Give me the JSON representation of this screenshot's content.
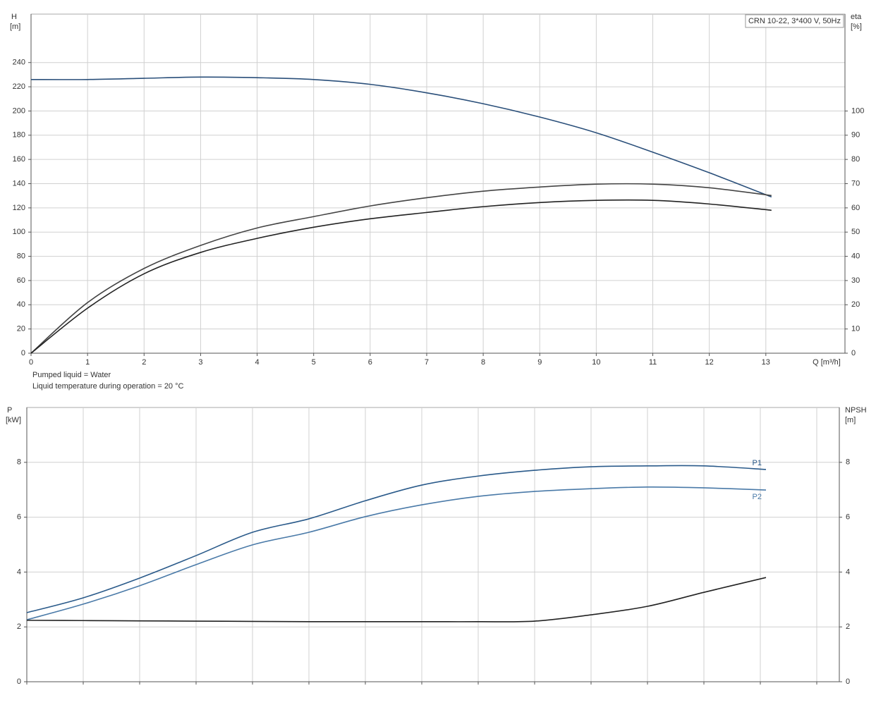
{
  "chart_data": [
    {
      "type": "line",
      "title": "CRN 10-22, 3*400 V, 50Hz",
      "y_label": "H",
      "y_unit": "[m]",
      "y2_label": "eta",
      "y2_unit": "[%]",
      "x_label": "Q [m³/h]",
      "notes": [
        "Pumped liquid = Water",
        "Liquid temperature during operation = 20 °C"
      ],
      "x": [
        0,
        1,
        2,
        3,
        4,
        5,
        6,
        7,
        8,
        9,
        10,
        11,
        12,
        13.1
      ],
      "series": [
        {
          "color": "#2a4f7a",
          "values": [
            226,
            226,
            227,
            228,
            227.5,
            226,
            222,
            215,
            206,
            195,
            182,
            166,
            149,
            129
          ]
        },
        {
          "color": "#444444",
          "axis": "y2",
          "values": [
            0,
            20.9,
            35,
            44.5,
            51.7,
            56.4,
            60.8,
            64.2,
            66.9,
            68.6,
            69.8,
            69.8,
            68.3,
            65.1
          ]
        },
        {
          "color": "#222222",
          "axis": "y2",
          "values": [
            0,
            18.6,
            32.8,
            41.6,
            47.4,
            52,
            55.5,
            58.1,
            60.5,
            62.2,
            63.1,
            63.1,
            61.6,
            59
          ]
        }
      ],
      "xlim": [
        0,
        14.4
      ],
      "xticks": [
        0,
        1,
        2,
        3,
        4,
        5,
        6,
        7,
        8,
        9,
        10,
        11,
        12,
        13
      ],
      "xtick_labels": true,
      "ylim": [
        0,
        280
      ],
      "yticks": [
        0,
        20,
        40,
        60,
        80,
        100,
        120,
        140,
        160,
        180,
        200,
        220,
        240
      ],
      "y2lim": [
        0,
        140
      ],
      "y2ticks": [
        0,
        10,
        20,
        30,
        40,
        50,
        60,
        70,
        80,
        90,
        100
      ],
      "grid": true
    },
    {
      "type": "line",
      "y_label": "P",
      "y_unit": "[kW]",
      "y2_label": "NPSH",
      "y2_unit": "[m]",
      "x": [
        0,
        1,
        2,
        3,
        4,
        5,
        6,
        7,
        8,
        9,
        10,
        11,
        12,
        13.1
      ],
      "series": [
        {
          "name": "P1",
          "color": "#2a5a8a",
          "values": [
            2.52,
            3.06,
            3.78,
            4.6,
            5.45,
            5.94,
            6.6,
            7.17,
            7.5,
            7.71,
            7.84,
            7.87,
            7.87,
            7.74
          ]
        },
        {
          "name": "P2",
          "color": "#4a7aa8",
          "values": [
            2.26,
            2.83,
            3.5,
            4.27,
            4.99,
            5.45,
            6.02,
            6.45,
            6.76,
            6.94,
            7.04,
            7.1,
            7.07,
            6.99
          ]
        },
        {
          "color": "#222222",
          "axis": "y2",
          "values": [
            2.24,
            2.23,
            2.22,
            2.21,
            2.2,
            2.19,
            2.19,
            2.19,
            2.19,
            2.21,
            2.44,
            2.75,
            3.26,
            3.8
          ]
        }
      ],
      "xlim": [
        0,
        14.4
      ],
      "xticks": [
        0,
        1,
        2,
        3,
        4,
        5,
        6,
        7,
        8,
        9,
        10,
        11,
        12,
        13,
        14
      ],
      "xtick_labels": false,
      "ylim": [
        0,
        10
      ],
      "yticks": [
        0,
        2,
        4,
        6,
        8
      ],
      "y2lim": [
        0,
        10
      ],
      "y2ticks": [
        0,
        2,
        4,
        6,
        8
      ],
      "grid": true
    }
  ]
}
